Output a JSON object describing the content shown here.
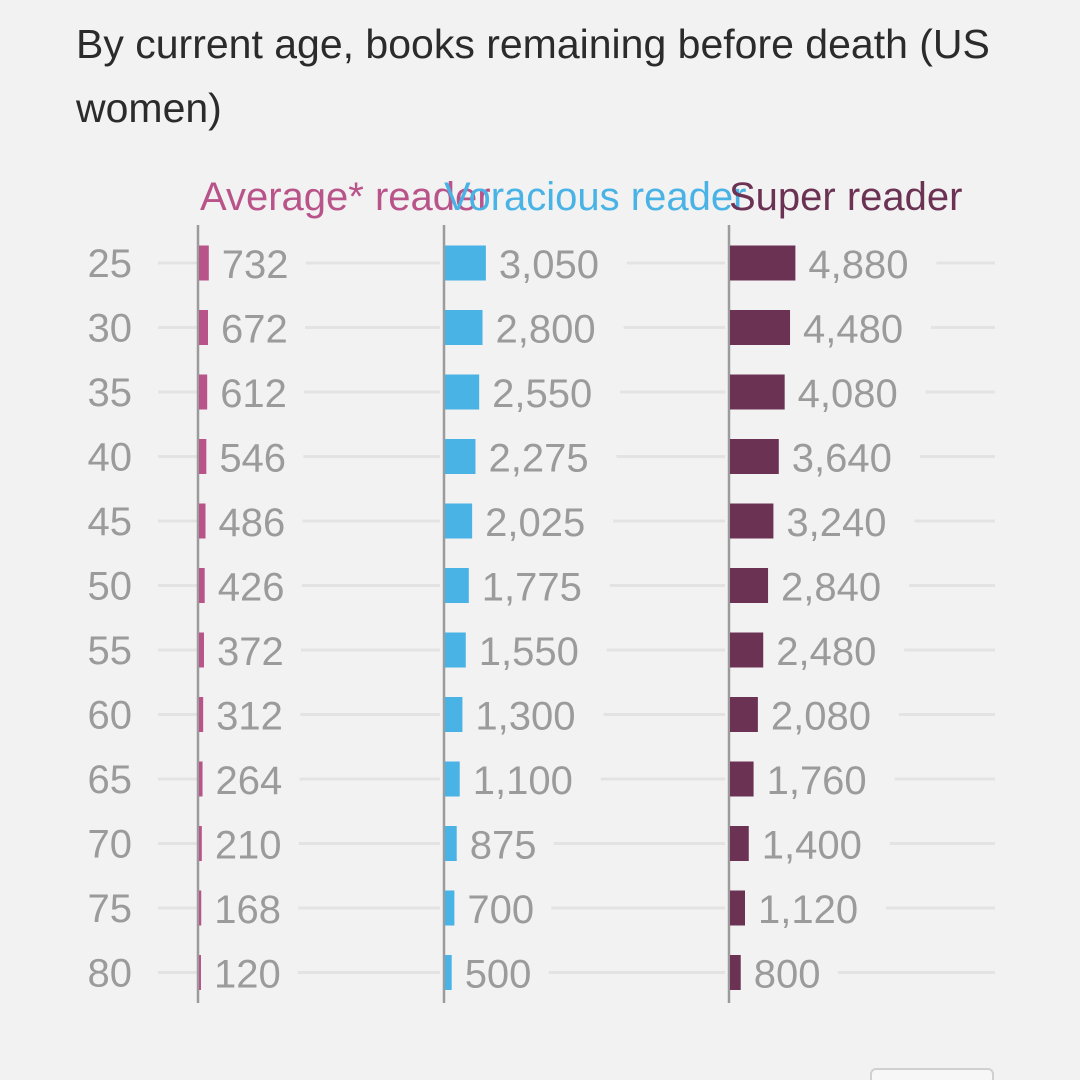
{
  "title": "By current age, books remaining before death (US women)",
  "colors": {
    "average": "#b9548a",
    "voracious": "#4ab3e6",
    "super": "#6b3254",
    "age_text": "#9b9b9b",
    "value_text": "#9b9b9b",
    "gridline": "#e4e3e3",
    "axis": "#9b9b9b"
  },
  "chart_data": {
    "type": "bar",
    "orientation": "horizontal",
    "layout": "small-multiples",
    "categories": [
      "25",
      "30",
      "35",
      "40",
      "45",
      "50",
      "55",
      "60",
      "65",
      "70",
      "75",
      "80"
    ],
    "series": [
      {
        "name": "Average* reader",
        "color": "#b9548a",
        "values": [
          732,
          672,
          612,
          546,
          486,
          426,
          372,
          312,
          264,
          210,
          168,
          120
        ],
        "labels": [
          "732",
          "672",
          "612",
          "546",
          "486",
          "426",
          "372",
          "312",
          "264",
          "210",
          "168",
          "120"
        ]
      },
      {
        "name": "Voracious reader",
        "color": "#4ab3e6",
        "values": [
          3050,
          2800,
          2550,
          2275,
          2025,
          1775,
          1550,
          1300,
          1100,
          875,
          700,
          500
        ],
        "labels": [
          "3,050",
          "2,800",
          "2,550",
          "2,275",
          "2,025",
          "1,775",
          "1,550",
          "1,300",
          "1,100",
          "875",
          "700",
          "500"
        ]
      },
      {
        "name": "Super reader",
        "color": "#6b3254",
        "values": [
          4880,
          4480,
          4080,
          3640,
          3240,
          2840,
          2480,
          2080,
          1760,
          1400,
          1120,
          800
        ],
        "labels": [
          "4,880",
          "4,480",
          "4,080",
          "3,640",
          "3,240",
          "2,840",
          "2,480",
          "2,080",
          "1,760",
          "1,400",
          "1,120",
          "800"
        ]
      }
    ],
    "grid": true,
    "legend": "none"
  }
}
